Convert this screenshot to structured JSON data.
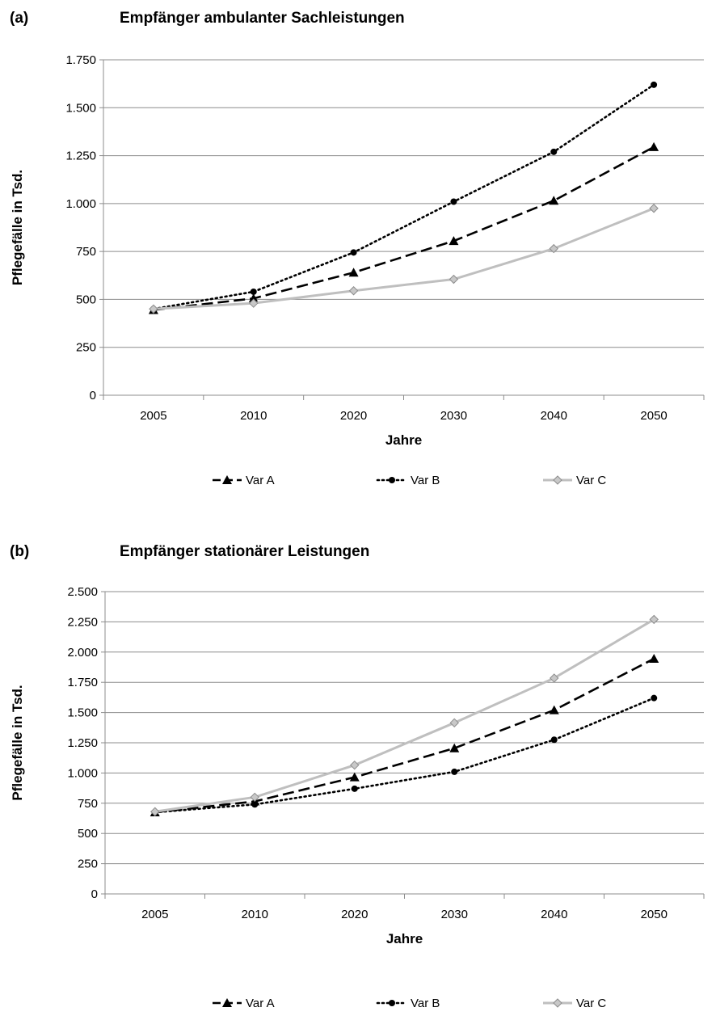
{
  "chart_data": [
    {
      "type": "line",
      "panel_label": "(a)",
      "title": "Empfänger ambulanter Sachleistungen",
      "xlabel": "Jahre",
      "ylabel": "Pflegefälle in Tsd.",
      "categories": [
        "2005",
        "2010",
        "2020",
        "2030",
        "2040",
        "2050"
      ],
      "ylim": [
        0,
        1750
      ],
      "yticks": [
        0,
        250,
        500,
        750,
        1000,
        1250,
        1500,
        1750
      ],
      "ytick_labels": [
        "0",
        "250",
        "500",
        "750",
        "1.000",
        "1.250",
        "1.500",
        "1.750"
      ],
      "grid": true,
      "legend": "bottom",
      "series": [
        {
          "name": "Var A",
          "values": [
            445,
            505,
            640,
            805,
            1015,
            1295
          ],
          "color": "#000000",
          "dash": "dashed",
          "marker": "triangle"
        },
        {
          "name": "Var B",
          "values": [
            450,
            540,
            745,
            1010,
            1270,
            1620
          ],
          "color": "#000000",
          "dash": "dotted",
          "marker": "circle"
        },
        {
          "name": "Var C",
          "values": [
            450,
            480,
            545,
            605,
            765,
            975
          ],
          "color": "#bfbfbf",
          "dash": "solid",
          "marker": "diamond"
        }
      ]
    },
    {
      "type": "line",
      "panel_label": "(b)",
      "title": "Empfänger stationärer Leistungen",
      "xlabel": "Jahre",
      "ylabel": "Pflegefälle in Tsd.",
      "categories": [
        "2005",
        "2010",
        "2020",
        "2030",
        "2040",
        "2050"
      ],
      "ylim": [
        0,
        2500
      ],
      "yticks": [
        0,
        250,
        500,
        750,
        1000,
        1250,
        1500,
        1750,
        2000,
        2250,
        2500
      ],
      "ytick_labels": [
        "0",
        "250",
        "500",
        "750",
        "1.000",
        "1.250",
        "1.500",
        "1.750",
        "2.000",
        "2.250",
        "2.500"
      ],
      "grid": true,
      "legend": "bottom",
      "series": [
        {
          "name": "Var A",
          "values": [
            675,
            765,
            965,
            1205,
            1520,
            1945
          ],
          "color": "#000000",
          "dash": "dashed",
          "marker": "triangle"
        },
        {
          "name": "Var B",
          "values": [
            675,
            740,
            870,
            1010,
            1275,
            1620
          ],
          "color": "#000000",
          "dash": "dotted",
          "marker": "circle"
        },
        {
          "name": "Var C",
          "values": [
            680,
            800,
            1065,
            1415,
            1785,
            2270
          ],
          "color": "#bfbfbf",
          "dash": "solid",
          "marker": "diamond"
        }
      ]
    }
  ]
}
